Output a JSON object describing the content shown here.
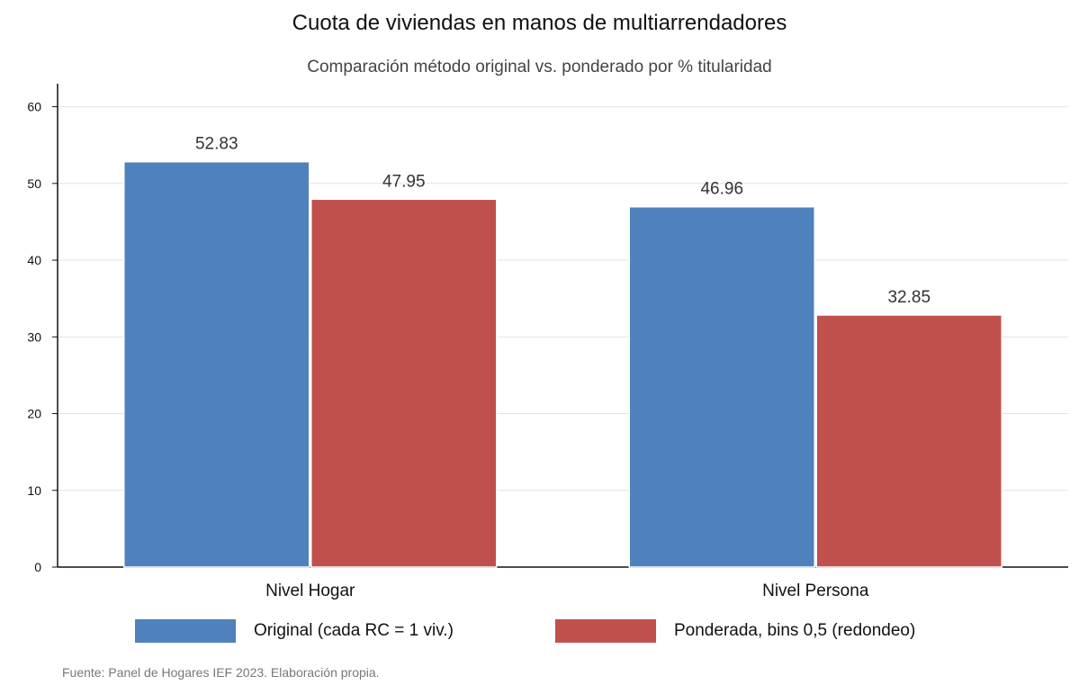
{
  "chart_data": {
    "type": "bar",
    "title": "Cuota de viviendas en manos de multiarrendadores",
    "subtitle": "Comparación método original vs. ponderado por % titularidad",
    "categories": [
      "Nivel Hogar",
      "Nivel Persona"
    ],
    "series": [
      {
        "name": "Original (cada RC = 1 viv.)",
        "values": [
          52.83,
          46.96
        ],
        "color": "#4f81bd"
      },
      {
        "name": "Ponderada, bins 0,5 (redondeo)",
        "values": [
          47.95,
          32.85
        ],
        "color": "#c0504d"
      }
    ],
    "data_labels": [
      [
        "52.83",
        "46.96"
      ],
      [
        "47.95",
        "32.85"
      ]
    ],
    "yticks": [
      "0",
      "10",
      "20",
      "30",
      "40",
      "50",
      "60"
    ],
    "ylim": [
      0,
      63
    ],
    "grid": true,
    "legend_position": "bottom",
    "xlabel": "",
    "ylabel": ""
  },
  "source_note": "Fuente: Panel de Hogares IEF 2023. Elaboración propia."
}
